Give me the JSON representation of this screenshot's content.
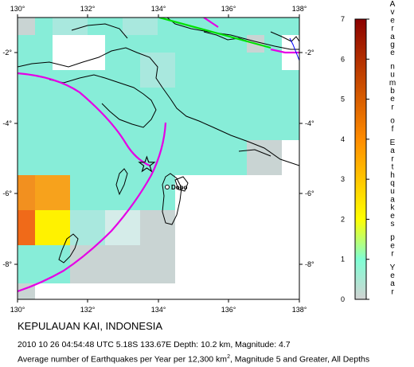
{
  "title": "KEPULAUAN KAI, INDONESIA",
  "event": {
    "date": "2010 10 26",
    "time": "04:54:48",
    "timezone": "UTC",
    "latitude": "5.18S",
    "longitude": "133.67E",
    "depth": "10.2 km",
    "magnitude": "4.7",
    "line": "2010 10 26 04:54:48 UTC 5.18S 133.67E Depth: 10.2 km, Magnitude: 4.7"
  },
  "caption": {
    "prefix": "Average number of Earthquakes per Year per 12,300 km",
    "superscript": "2",
    "suffix": ", Magnitude 5 and Greater, All Depths"
  },
  "map": {
    "lon_range": [
      130,
      138
    ],
    "lat_range": [
      -9,
      -1
    ],
    "lon_ticks": [
      "130°",
      "132°",
      "134°",
      "136°",
      "138°"
    ],
    "lat_ticks": [
      "-2°",
      "-4°",
      "-6°",
      "-8°"
    ],
    "place_label": "Dobo",
    "epicenter": {
      "lon": 133.67,
      "lat": -5.18
    }
  },
  "colorbar": {
    "title": "Average number of Earthquakes per Year",
    "ticks": [
      "7",
      "6",
      "5",
      "4",
      "3",
      "2",
      "1",
      "0"
    ],
    "stops": [
      {
        "value": 0,
        "color": "#d3d3d3"
      },
      {
        "value": 1,
        "color": "#7fffd4"
      },
      {
        "value": 2,
        "color": "#ffff00"
      },
      {
        "value": 4,
        "color": "#ff8c00"
      },
      {
        "value": 7,
        "color": "#8b0000"
      }
    ]
  },
  "colors": {
    "ocean_low": "#b8e2e3",
    "land": "#ffffff",
    "plate_boundary": "#e500e5",
    "fault": "#00e000",
    "river": "#0000ff"
  }
}
